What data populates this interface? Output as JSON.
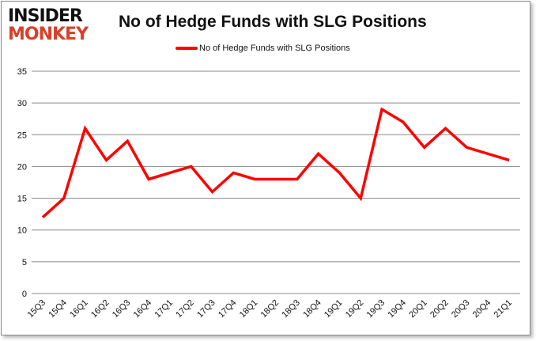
{
  "logo": {
    "line1": "INSIDER",
    "line2": "MONKEY"
  },
  "chart_data": {
    "type": "line",
    "title": "No of Hedge Funds with SLG Positions",
    "xlabel": "",
    "ylabel": "",
    "categories": [
      "15Q3",
      "15Q4",
      "16Q1",
      "16Q2",
      "16Q3",
      "16Q4",
      "17Q1",
      "17Q2",
      "17Q3",
      "17Q4",
      "18Q1",
      "18Q2",
      "18Q3",
      "18Q4",
      "19Q1",
      "19Q2",
      "19Q3",
      "19Q4",
      "20Q1",
      "20Q2",
      "20Q3",
      "20Q4",
      "21Q1"
    ],
    "series": [
      {
        "name": "No of Hedge Funds with SLG Positions",
        "color": "#ff0000",
        "values": [
          12,
          15,
          26,
          21,
          24,
          18,
          19,
          20,
          16,
          19,
          18,
          18,
          18,
          22,
          19,
          15,
          29,
          27,
          23,
          26,
          23,
          22,
          21
        ]
      }
    ],
    "ylim": [
      0,
      35
    ],
    "yticks": [
      0,
      5,
      10,
      15,
      20,
      25,
      30,
      35
    ],
    "grid": true,
    "legend": "top-center"
  }
}
